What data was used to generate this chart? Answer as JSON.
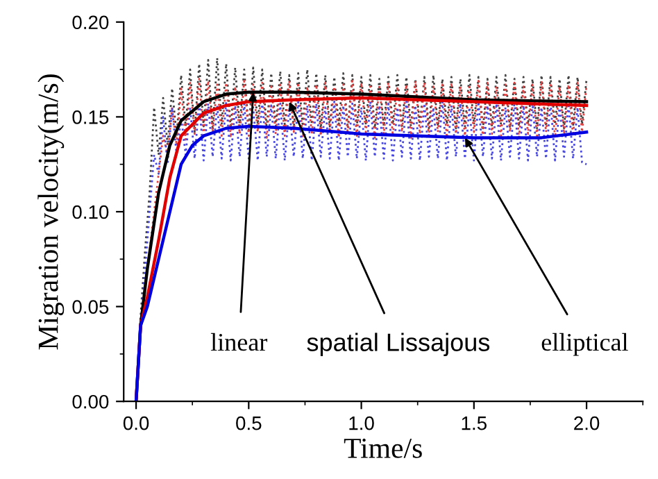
{
  "chart_data": {
    "type": "line",
    "xlabel": "Time/s",
    "ylabel": "Migration velocity(m/s)",
    "x": [
      0,
      0.02,
      0.04,
      0.06,
      0.08,
      0.1,
      0.12,
      0.14,
      0.16,
      0.18,
      0.2,
      0.22,
      0.24,
      0.26,
      0.28,
      0.3,
      0.32,
      0.34,
      0.36,
      0.38,
      0.4,
      0.42,
      0.44,
      0.46,
      0.48,
      0.5,
      0.52,
      0.54,
      0.56,
      0.58,
      0.6,
      0.62,
      0.64,
      0.66,
      0.68,
      0.7,
      0.72,
      0.74,
      0.76,
      0.78,
      0.8,
      0.82,
      0.84,
      0.86,
      0.88,
      0.9,
      0.92,
      0.94,
      0.96,
      0.98,
      1.0,
      1.02,
      1.04,
      1.06,
      1.08,
      1.1,
      1.12,
      1.14,
      1.16,
      1.18,
      1.2,
      1.22,
      1.24,
      1.26,
      1.28,
      1.3,
      1.32,
      1.34,
      1.36,
      1.38,
      1.4,
      1.42,
      1.44,
      1.46,
      1.48,
      1.5,
      1.52,
      1.54,
      1.56,
      1.58,
      1.6,
      1.62,
      1.64,
      1.66,
      1.68,
      1.7,
      1.72,
      1.74,
      1.76,
      1.78,
      1.8,
      1.82,
      1.84,
      1.86,
      1.88,
      1.9,
      1.92,
      1.94,
      1.96,
      1.98,
      2.0
    ],
    "series": [
      {
        "color": "#404040",
        "line_style": "dotted",
        "values": [
          0,
          0.045,
          0.08,
          0.11,
          0.155,
          0.13,
          0.16,
          0.135,
          0.165,
          0.14,
          0.172,
          0.145,
          0.175,
          0.142,
          0.178,
          0.145,
          0.18,
          0.143,
          0.181,
          0.146,
          0.178,
          0.144,
          0.176,
          0.145,
          0.175,
          0.143,
          0.176,
          0.146,
          0.175,
          0.144,
          0.173,
          0.145,
          0.174,
          0.146,
          0.172,
          0.144,
          0.173,
          0.145,
          0.175,
          0.146,
          0.173,
          0.144,
          0.172,
          0.145,
          0.171,
          0.146,
          0.173,
          0.144,
          0.172,
          0.145,
          0.171,
          0.146,
          0.172,
          0.144,
          0.17,
          0.145,
          0.171,
          0.146,
          0.172,
          0.144,
          0.171,
          0.145,
          0.17,
          0.146,
          0.171,
          0.144,
          0.172,
          0.145,
          0.17,
          0.146,
          0.171,
          0.144,
          0.17,
          0.145,
          0.172,
          0.146,
          0.171,
          0.144,
          0.17,
          0.145,
          0.171,
          0.146,
          0.172,
          0.144,
          0.17,
          0.145,
          0.171,
          0.146,
          0.17,
          0.144,
          0.172,
          0.145,
          0.171,
          0.146,
          0.17,
          0.144,
          0.172,
          0.145,
          0.171,
          0.146,
          0.17
        ]
      },
      {
        "color": "#e04040",
        "line_style": "dotted",
        "values": [
          0,
          0.04,
          0.06,
          0.08,
          0.1,
          0.12,
          0.14,
          0.13,
          0.155,
          0.135,
          0.165,
          0.138,
          0.168,
          0.141,
          0.17,
          0.139,
          0.169,
          0.142,
          0.167,
          0.14,
          0.168,
          0.139,
          0.166,
          0.141,
          0.169,
          0.14,
          0.167,
          0.142,
          0.168,
          0.139,
          0.166,
          0.141,
          0.167,
          0.14,
          0.169,
          0.142,
          0.168,
          0.139,
          0.166,
          0.141,
          0.167,
          0.14,
          0.168,
          0.142,
          0.166,
          0.139,
          0.167,
          0.141,
          0.169,
          0.14,
          0.168,
          0.142,
          0.166,
          0.139,
          0.167,
          0.141,
          0.168,
          0.14,
          0.166,
          0.142,
          0.167,
          0.139,
          0.169,
          0.141,
          0.168,
          0.14,
          0.166,
          0.142,
          0.167,
          0.139,
          0.168,
          0.141,
          0.166,
          0.14,
          0.167,
          0.142,
          0.169,
          0.139,
          0.168,
          0.141,
          0.166,
          0.14,
          0.167,
          0.142,
          0.168,
          0.139,
          0.166,
          0.141,
          0.167,
          0.14,
          0.169,
          0.142,
          0.168,
          0.139,
          0.166,
          0.141,
          0.167,
          0.14,
          0.168,
          0.142,
          0.167
        ]
      },
      {
        "color": "#4848e0",
        "line_style": "dotted",
        "values": [
          0,
          0.04,
          0.07,
          0.1,
          0.13,
          0.12,
          0.15,
          0.125,
          0.155,
          0.13,
          0.15,
          0.13,
          0.155,
          0.128,
          0.158,
          0.127,
          0.157,
          0.129,
          0.156,
          0.128,
          0.158,
          0.127,
          0.156,
          0.129,
          0.157,
          0.128,
          0.155,
          0.127,
          0.158,
          0.129,
          0.156,
          0.128,
          0.157,
          0.127,
          0.155,
          0.129,
          0.158,
          0.128,
          0.156,
          0.127,
          0.157,
          0.129,
          0.155,
          0.128,
          0.158,
          0.127,
          0.156,
          0.129,
          0.157,
          0.128,
          0.155,
          0.127,
          0.158,
          0.129,
          0.156,
          0.128,
          0.157,
          0.127,
          0.155,
          0.129,
          0.158,
          0.128,
          0.156,
          0.127,
          0.157,
          0.129,
          0.155,
          0.128,
          0.158,
          0.127,
          0.156,
          0.129,
          0.157,
          0.128,
          0.155,
          0.127,
          0.158,
          0.129,
          0.156,
          0.128,
          0.157,
          0.127,
          0.155,
          0.129,
          0.158,
          0.128,
          0.156,
          0.127,
          0.157,
          0.129,
          0.155,
          0.128,
          0.158,
          0.127,
          0.156,
          0.129,
          0.157,
          0.128,
          0.155,
          0.126,
          0.125
        ]
      },
      {
        "color": "#000000",
        "line_style": "solid",
        "x": [
          0,
          0.02,
          0.05,
          0.1,
          0.15,
          0.2,
          0.3,
          0.4,
          0.5,
          0.7,
          1.0,
          1.5,
          2.0
        ],
        "values": [
          0,
          0.04,
          0.07,
          0.11,
          0.135,
          0.148,
          0.158,
          0.162,
          0.163,
          0.163,
          0.162,
          0.159,
          0.158
        ]
      },
      {
        "color": "#e00000",
        "line_style": "solid",
        "x": [
          0,
          0.02,
          0.05,
          0.1,
          0.15,
          0.2,
          0.3,
          0.4,
          0.5,
          0.7,
          1.0,
          1.5,
          2.0
        ],
        "values": [
          0,
          0.04,
          0.055,
          0.085,
          0.118,
          0.14,
          0.152,
          0.156,
          0.158,
          0.159,
          0.16,
          0.158,
          0.156
        ]
      },
      {
        "color": "#0000e0",
        "line_style": "solid",
        "x": [
          0,
          0.02,
          0.05,
          0.1,
          0.15,
          0.2,
          0.25,
          0.3,
          0.4,
          0.5,
          0.7,
          1.0,
          1.5,
          1.8,
          2.0
        ],
        "values": [
          0,
          0.04,
          0.05,
          0.075,
          0.1,
          0.125,
          0.135,
          0.14,
          0.144,
          0.145,
          0.144,
          0.141,
          0.139,
          0.139,
          0.142
        ]
      }
    ],
    "annotations": [
      {
        "text": "linear",
        "x": 0.52,
        "y": 0.163
      },
      {
        "text": "spatial Lissajous",
        "x": 0.68,
        "y": 0.158
      },
      {
        "text": "elliptical",
        "x": 1.46,
        "y": 0.139
      }
    ],
    "xlim": [
      -0.055,
      2.25
    ],
    "ylim": [
      0,
      0.2
    ],
    "xticks": [
      {
        "value": 0,
        "label": "0.0"
      },
      {
        "value": 0.5,
        "label": "0.5"
      },
      {
        "value": 1,
        "label": "1.0"
      },
      {
        "value": 1.5,
        "label": "1.5"
      },
      {
        "value": 2,
        "label": "2.0"
      }
    ],
    "yticks": [
      {
        "value": 0,
        "label": "0.00"
      },
      {
        "value": 0.05,
        "label": "0.05"
      },
      {
        "value": 0.1,
        "label": "0.10"
      },
      {
        "value": 0.15,
        "label": "0.15"
      },
      {
        "value": 0.2,
        "label": "0.20"
      }
    ],
    "grid": false,
    "legend": false,
    "marker": "none"
  }
}
